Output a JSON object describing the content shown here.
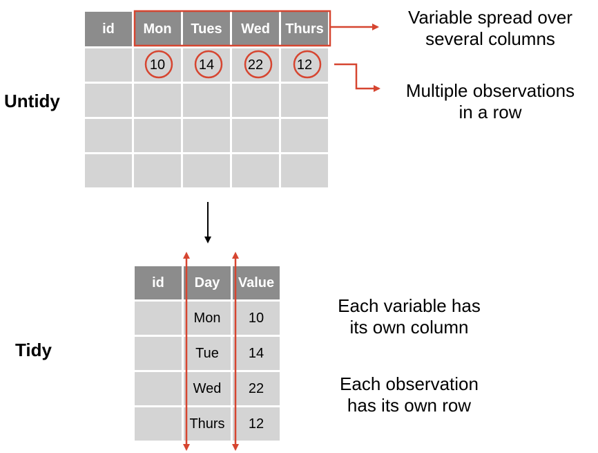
{
  "untidy": {
    "label": "Untidy",
    "headers": [
      "id",
      "Mon",
      "Tues",
      "Wed",
      "Thurs"
    ],
    "values": [
      "10",
      "14",
      "22",
      "12"
    ],
    "note_columns": [
      "Variable spread over",
      "several columns"
    ],
    "note_rows": [
      "Multiple observations",
      "in a row"
    ]
  },
  "tidy": {
    "label": "Tidy",
    "headers": [
      "id",
      "Day",
      "Value"
    ],
    "rows": [
      {
        "day": "Mon",
        "value": "10"
      },
      {
        "day": "Tue",
        "value": "14"
      },
      {
        "day": "Wed",
        "value": "22"
      },
      {
        "day": "Thurs",
        "value": "12"
      }
    ],
    "note_variable": [
      "Each variable has",
      "its own column"
    ],
    "note_observation": [
      "Each observation",
      "has its own row"
    ]
  },
  "colors": {
    "accent": "#d64530",
    "header_bg": "#8c8c8c",
    "cell_bg": "#d4d4d4"
  }
}
